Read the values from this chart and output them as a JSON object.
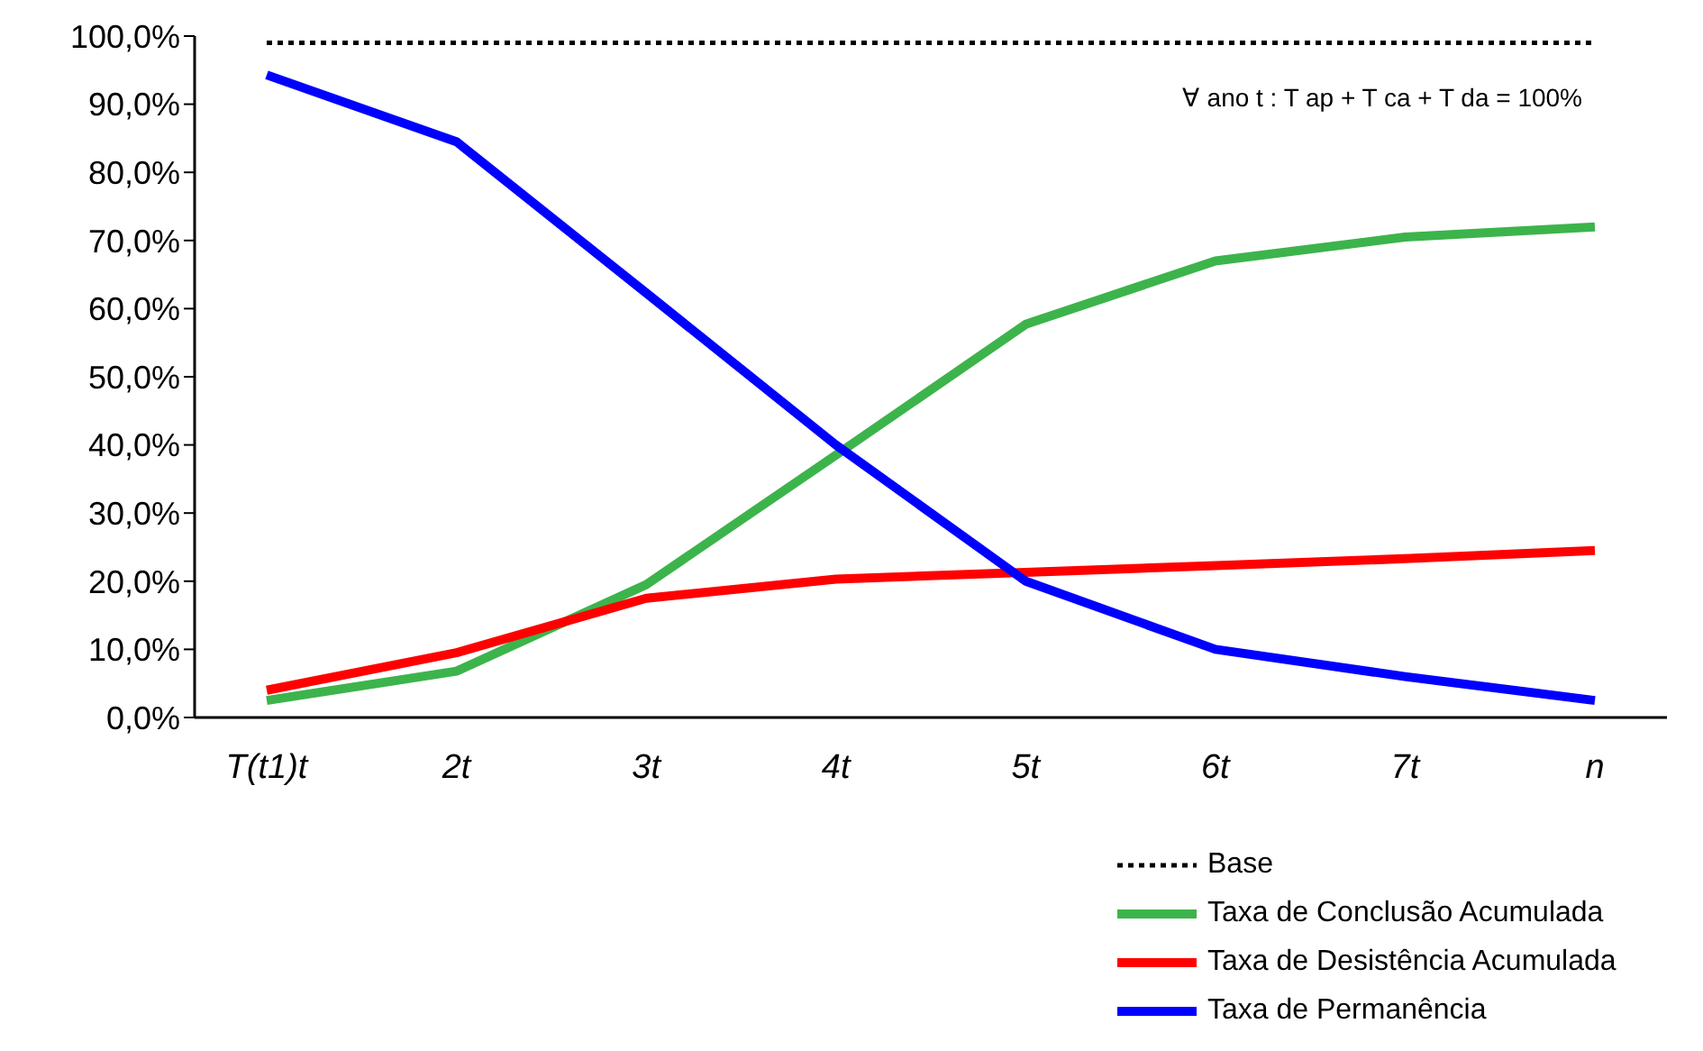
{
  "chart_data": {
    "type": "line",
    "categories": [
      "T(t1)t",
      "2t",
      "3t",
      "4t",
      "5t",
      "6t",
      "7t",
      "n"
    ],
    "series": [
      {
        "name": "Base",
        "color": "#000000",
        "line_style": "dotted",
        "values": [
          99,
          99,
          99,
          99,
          99,
          99,
          99,
          99
        ]
      },
      {
        "name": "Taxa de Conclusão Acumulada",
        "color": "#3cb44b",
        "values": [
          2.5,
          6.8,
          19.5,
          38.5,
          57.7,
          67,
          70.5,
          72
        ]
      },
      {
        "name": "Taxa de Desistência Acumulada",
        "color": "#ff0000",
        "values": [
          4,
          9.5,
          17.5,
          20.3,
          21.3,
          22.3,
          23.3,
          24.5
        ]
      },
      {
        "name": "Taxa de Permanência",
        "color": "#0000ff",
        "values": [
          94.3,
          84.5,
          62.3,
          40,
          20,
          10,
          6,
          2.5
        ]
      }
    ],
    "ylim": [
      0,
      100
    ],
    "yticks": [
      {
        "value": 0,
        "label": "0,0%"
      },
      {
        "value": 10,
        "label": "10,0%"
      },
      {
        "value": 20,
        "label": "20,0%"
      },
      {
        "value": 30,
        "label": "30,0%"
      },
      {
        "value": 40,
        "label": "40,0%"
      },
      {
        "value": 50,
        "label": "50,0%"
      },
      {
        "value": 60,
        "label": "60,0%"
      },
      {
        "value": 70,
        "label": "70,0%"
      },
      {
        "value": 80,
        "label": "80,0%"
      },
      {
        "value": 90,
        "label": "90,0%"
      },
      {
        "value": 100,
        "label": "100,0%"
      }
    ],
    "annotations": [
      "∀ ano t : T ap + T ca + T da = 100%"
    ],
    "grid": false,
    "legend": "bottom right",
    "marker": "none"
  }
}
